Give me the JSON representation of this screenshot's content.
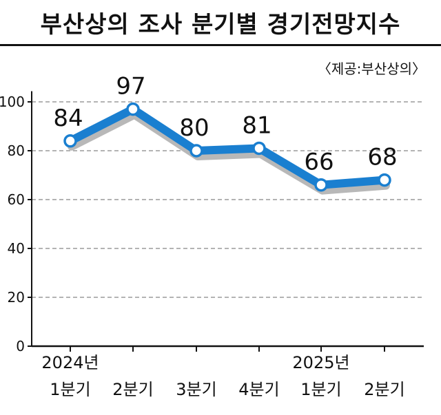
{
  "chart_data": {
    "type": "line",
    "title": "부산상의 조사 분기별 경기전망지수",
    "source": "〈제공:부산상의〉",
    "categories": [
      "1분기",
      "2분기",
      "3분기",
      "4분기",
      "1분기",
      "2분기"
    ],
    "year_labels": [
      "2024년",
      "",
      "",
      "",
      "2025년",
      ""
    ],
    "values": [
      84,
      97,
      80,
      81,
      66,
      68
    ],
    "yticks": [
      0,
      20,
      40,
      60,
      80,
      100
    ],
    "ylim": [
      0,
      110
    ],
    "grid": true,
    "colors": {
      "line": "#1a7fd0",
      "shadow": "#b8b8b8",
      "grid": "#9a9a9a",
      "marker_fill": "#ffffff"
    }
  }
}
